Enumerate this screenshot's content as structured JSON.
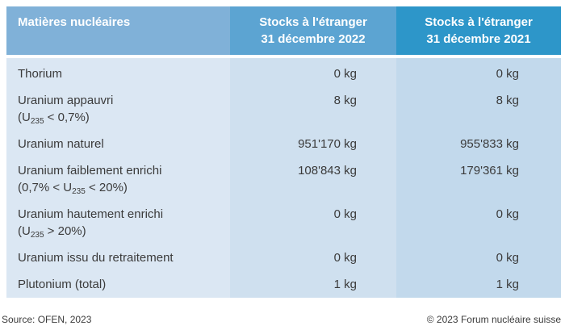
{
  "table": {
    "header": {
      "col1": "Matières nucléaires",
      "col2_line1": "Stocks à l'étranger",
      "col2_line2": "31 décembre 2022",
      "col3_line1": "Stocks à l'étranger",
      "col3_line2": "31 décembre 2021"
    },
    "rows": [
      {
        "label": "Thorium",
        "v2022": "0 kg",
        "v2021": "0 kg"
      },
      {
        "label": "Uranium appauvri",
        "sub_pre": "(U",
        "sub_s": "235",
        "sub_post": " < 0,7%)",
        "v2022": "8 kg",
        "v2021": "8 kg"
      },
      {
        "label": "Uranium naturel",
        "v2022": "951'170 kg",
        "v2021": "955'833 kg"
      },
      {
        "label": "Uranium faiblement enrichi",
        "sub_pre": "(0,7% < U",
        "sub_s": "235",
        "sub_post": " < 20%)",
        "v2022": "108'843 kg",
        "v2021": "179'361 kg"
      },
      {
        "label": "Uranium hautement enrichi",
        "sub_pre": "(U",
        "sub_s": "235",
        "sub_post": " > 20%)",
        "v2022": "0 kg",
        "v2021": "0 kg"
      },
      {
        "label": "Uranium issu du retraitement",
        "v2022": "0 kg",
        "v2021": "0 kg"
      },
      {
        "label": "Plutonium (total)",
        "v2022": "1 kg",
        "v2021": "1 kg"
      }
    ]
  },
  "footer": {
    "source": "Source: OFEN, 2023",
    "copyright": "© 2023 Forum nucléaire suisse"
  },
  "colors": {
    "header_col1_bg": "#80b1d8",
    "header_col2_bg": "#5ca4d2",
    "header_col3_bg": "#2d96c9",
    "body_col1_bg": "#dbe7f3",
    "body_col2_bg": "#cfe0ef",
    "body_col3_bg": "#c2d9ec",
    "header_text": "#ffffff",
    "body_text": "#3b3b3b"
  },
  "chart_data": {
    "type": "table",
    "columns": [
      "Matières nucléaires",
      "Stocks à l'étranger 31 décembre 2022",
      "Stocks à l'étranger 31 décembre 2021"
    ],
    "rows": [
      [
        "Thorium",
        "0 kg",
        "0 kg"
      ],
      [
        "Uranium appauvri (U235 < 0,7%)",
        "8 kg",
        "8 kg"
      ],
      [
        "Uranium naturel",
        "951'170 kg",
        "955'833 kg"
      ],
      [
        "Uranium faiblement enrichi (0,7% < U235 < 20%)",
        "108'843 kg",
        "179'361 kg"
      ],
      [
        "Uranium hautement enrichi (U235 > 20%)",
        "0 kg",
        "0 kg"
      ],
      [
        "Uranium issu du retraitement",
        "0 kg",
        "0 kg"
      ],
      [
        "Plutonium (total)",
        "1 kg",
        "1 kg"
      ]
    ],
    "values_kg": {
      "2022": [
        0,
        8,
        951170,
        108843,
        0,
        0,
        1
      ],
      "2021": [
        0,
        8,
        955833,
        179361,
        0,
        0,
        1
      ]
    },
    "source": "Source: OFEN, 2023",
    "copyright": "© 2023 Forum nucléaire suisse"
  }
}
